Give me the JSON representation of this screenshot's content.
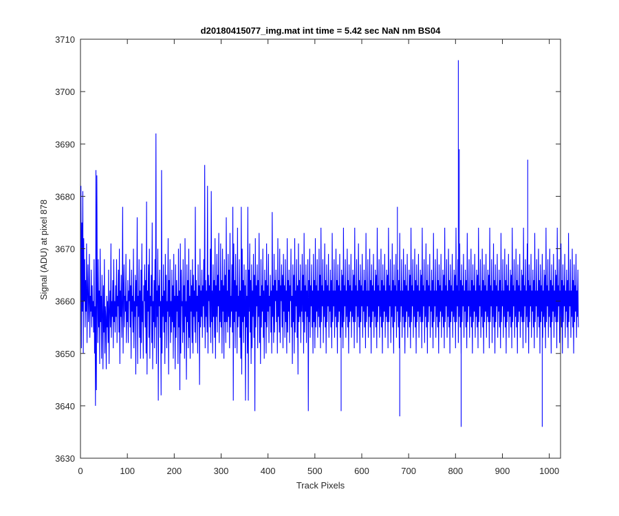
{
  "chart_data": {
    "type": "line",
    "title": "d20180415077_img.mat int time = 5.42 sec  NaN nm BS04",
    "xlabel": "Track Pixels",
    "ylabel": "Signal (ADU) at pixel 878",
    "xlim": [
      0,
      1024
    ],
    "ylim": [
      3630,
      3710
    ],
    "xticks": [
      0,
      100,
      200,
      300,
      400,
      500,
      600,
      700,
      800,
      900,
      1000
    ],
    "yticks": [
      3630,
      3640,
      3650,
      3660,
      3670,
      3680,
      3690,
      3700,
      3710
    ],
    "grid": false,
    "legend": "none",
    "series": [
      {
        "color": "#0000ff",
        "x_start": 1,
        "x_step": 1,
        "values": [
          3682,
          3651,
          3675,
          3658,
          3681,
          3650,
          3672,
          3660,
          3668,
          3655,
          3664,
          3658,
          3671,
          3652,
          3662,
          3667,
          3656,
          3660,
          3669,
          3653,
          3661,
          3658,
          3666,
          3655,
          3663,
          3657,
          3660,
          3654,
          3668,
          3650,
          3659,
          3640,
          3685,
          3643,
          3684,
          3660,
          3652,
          3668,
          3655,
          3662,
          3648,
          3670,
          3656,
          3661,
          3649,
          3665,
          3658,
          3647,
          3663,
          3654,
          3668,
          3650,
          3659,
          3657,
          3647,
          3661,
          3655,
          3660,
          3652,
          3666,
          3648,
          3658,
          3662,
          3655,
          3671,
          3653,
          3660,
          3657,
          3664,
          3651,
          3668,
          3656,
          3660,
          3654,
          3663,
          3657,
          3668,
          3652,
          3661,
          3659,
          3666,
          3654,
          3670,
          3648,
          3662,
          3657,
          3665,
          3653,
          3659,
          3678,
          3650,
          3662,
          3667,
          3655,
          3661,
          3658,
          3669,
          3652,
          3660,
          3656,
          3664,
          3652,
          3662,
          3660,
          3668,
          3655,
          3663,
          3649,
          3666,
          3658,
          3661,
          3654,
          3670,
          3651,
          3660,
          3657,
          3665,
          3646,
          3664,
          3659,
          3676,
          3648,
          3661,
          3657,
          3668,
          3653,
          3662,
          3649,
          3666,
          3652,
          3671,
          3656,
          3660,
          3649,
          3663,
          3660,
          3667,
          3655,
          3664,
          3650,
          3679,
          3646,
          3662,
          3658,
          3667,
          3653,
          3670,
          3649,
          3661,
          3659,
          3665,
          3652,
          3675,
          3647,
          3660,
          3656,
          3664,
          3651,
          3668,
          3655,
          3692,
          3648,
          3662,
          3657,
          3670,
          3641,
          3663,
          3659,
          3666,
          3653,
          3660,
          3642,
          3685,
          3650,
          3661,
          3657,
          3667,
          3654,
          3662,
          3648,
          3669,
          3656,
          3665,
          3651,
          3660,
          3658,
          3672,
          3646,
          3664,
          3657,
          3668,
          3652,
          3660,
          3654,
          3666,
          3656,
          3663,
          3649,
          3669,
          3655,
          3661,
          3647,
          3667,
          3653,
          3664,
          3658,
          3661,
          3648,
          3670,
          3655,
          3662,
          3643,
          3671,
          3650,
          3666,
          3659,
          3660,
          3652,
          3668,
          3654,
          3663,
          3649,
          3672,
          3657,
          3660,
          3645,
          3667,
          3656,
          3664,
          3651,
          3670,
          3653,
          3661,
          3649,
          3666,
          3658,
          3663,
          3652,
          3668,
          3650,
          3665,
          3657,
          3662,
          3654,
          3678,
          3652,
          3664,
          3658,
          3661,
          3650,
          3667,
          3656,
          3663,
          3644,
          3670,
          3655,
          3662,
          3657,
          3666,
          3653,
          3663,
          3659,
          3668,
          3655,
          3686,
          3651,
          3664,
          3657,
          3662,
          3654,
          3682,
          3650,
          3665,
          3660,
          3663,
          3655,
          3670,
          3652,
          3681,
          3656,
          3662,
          3650,
          3667,
          3657,
          3664,
          3653,
          3672,
          3649,
          3663,
          3657,
          3669,
          3654,
          3665,
          3659,
          3673,
          3652,
          3662,
          3656,
          3671,
          3655,
          3664,
          3650,
          3670,
          3658,
          3663,
          3649,
          3668,
          3656,
          3665,
          3652,
          3676,
          3656,
          3662,
          3654,
          3669,
          3657,
          3666,
          3651,
          3673,
          3655,
          3661,
          3658,
          3667,
          3654,
          3678,
          3641,
          3671,
          3656,
          3664,
          3651,
          3669,
          3658,
          3663,
          3650,
          3674,
          3655,
          3661,
          3657,
          3668,
          3653,
          3662,
          3649,
          3678,
          3646,
          3670,
          3656,
          3664,
          3652,
          3667,
          3657,
          3663,
          3641,
          3666,
          3655,
          3661,
          3650,
          3678,
          3641,
          3666,
          3658,
          3671,
          3654,
          3664,
          3648,
          3667,
          3651,
          3662,
          3657,
          3669,
          3653,
          3665,
          3639,
          3672,
          3655,
          3663,
          3659,
          3667,
          3651,
          3664,
          3657,
          3673,
          3652,
          3661,
          3648,
          3668,
          3655,
          3663,
          3658,
          3670,
          3653,
          3662,
          3649,
          3666,
          3656,
          3664,
          3650,
          3671,
          3655,
          3663,
          3658,
          3669,
          3652,
          3661,
          3659,
          3665,
          3654,
          3662,
          3650,
          3677,
          3657,
          3663,
          3652,
          3669,
          3654,
          3664,
          3660,
          3666,
          3656,
          3662,
          3650,
          3672,
          3657,
          3664,
          3654,
          3670,
          3652,
          3663,
          3660,
          3667,
          3655,
          3665,
          3651,
          3669,
          3658,
          3663,
          3653,
          3668,
          3656,
          3662,
          3650,
          3672,
          3654,
          3664,
          3658,
          3666,
          3652,
          3663,
          3660,
          3670,
          3655,
          3661,
          3648,
          3667,
          3656,
          3665,
          3650,
          3672,
          3654,
          3662,
          3659,
          3668,
          3653,
          3663,
          3646,
          3671,
          3656,
          3664,
          3657,
          3667,
          3652,
          3662,
          3658,
          3669,
          3656,
          3665,
          3650,
          3673,
          3654,
          3663,
          3658,
          3667,
          3652,
          3662,
          3657,
          3668,
          3639,
          3664,
          3656,
          3670,
          3653,
          3663,
          3659,
          3667,
          3655,
          3662,
          3650,
          3669,
          3656,
          3664,
          3651,
          3672,
          3655,
          3663,
          3658,
          3668,
          3653,
          3662,
          3657,
          3670,
          3655,
          3665,
          3651,
          3674,
          3656,
          3663,
          3659,
          3668,
          3652,
          3662,
          3657,
          3671,
          3655,
          3664,
          3650,
          3667,
          3656,
          3663,
          3659,
          3669,
          3653,
          3662,
          3658,
          3666,
          3655,
          3664,
          3651,
          3673,
          3656,
          3662,
          3659,
          3668,
          3653,
          3662,
          3657,
          3670,
          3655,
          3664,
          3650,
          3667,
          3656,
          3663,
          3658,
          3669,
          3653,
          3662,
          3657,
          3666,
          3655,
          3665,
          3651,
          3674,
          3656,
          3663,
          3659,
          3668,
          3653,
          3662,
          3657,
          3670,
          3655,
          3664,
          3650,
          3667,
          3656,
          3663,
          3658,
          3669,
          3653,
          3662,
          3657,
          3666,
          3656,
          3665,
          3651,
          3674,
          3656,
          3663,
          3659,
          3668,
          3652,
          3662,
          3657,
          3671,
          3655,
          3664,
          3650,
          3667,
          3656,
          3663,
          3659,
          3669,
          3653,
          3662,
          3658,
          3666,
          3655,
          3664,
          3651,
          3673,
          3656,
          3662,
          3659,
          3668,
          3653,
          3662,
          3657,
          3670,
          3655,
          3664,
          3650,
          3667,
          3656,
          3663,
          3658,
          3669,
          3653,
          3662,
          3657,
          3666,
          3655,
          3665,
          3651,
          3674,
          3656,
          3663,
          3659,
          3668,
          3653,
          3662,
          3657,
          3670,
          3655,
          3664,
          3650,
          3667,
          3656,
          3663,
          3658,
          3669,
          3653,
          3662,
          3657,
          3666,
          3656,
          3665,
          3651,
          3674,
          3656,
          3663,
          3659,
          3668,
          3652,
          3662,
          3657,
          3671,
          3655,
          3664,
          3650,
          3667,
          3656,
          3663,
          3659,
          3669,
          3653,
          3662,
          3658,
          3666,
          3655,
          3664,
          3651,
          3673,
          3656,
          3662,
          3659,
          3668,
          3653,
          3662,
          3657,
          3670,
          3655,
          3664,
          3650,
          3667,
          3656,
          3663,
          3658,
          3669,
          3653,
          3662,
          3657,
          3666,
          3655,
          3665,
          3651,
          3674,
          3656,
          3663,
          3659,
          3668,
          3653,
          3662,
          3657,
          3670,
          3655,
          3664,
          3650,
          3667,
          3656,
          3663,
          3658,
          3669,
          3653,
          3662,
          3657,
          3666,
          3656,
          3665,
          3651,
          3674,
          3656,
          3663,
          3659,
          3668,
          3652,
          3662,
          3657,
          3671,
          3655,
          3664,
          3650,
          3667,
          3656,
          3663,
          3659,
          3669,
          3653,
          3662,
          3658,
          3666,
          3655,
          3664,
          3651,
          3673,
          3656,
          3662,
          3659,
          3668,
          3653,
          3662,
          3657,
          3670,
          3655,
          3664,
          3650,
          3667,
          3656,
          3663,
          3658,
          3669,
          3653,
          3662,
          3657,
          3666,
          3655,
          3665,
          3651,
          3674,
          3656,
          3663,
          3659,
          3668,
          3653,
          3662,
          3657,
          3670,
          3655,
          3664,
          3650,
          3667,
          3656,
          3663,
          3658,
          3669,
          3653,
          3662,
          3657,
          3666,
          3656,
          3665,
          3651,
          3674,
          3656,
          3663,
          3659,
          3668,
          3652,
          3662,
          3657,
          3671,
          3655,
          3664,
          3650,
          3667,
          3656,
          3663,
          3659,
          3669,
          3653,
          3662,
          3658,
          3666,
          3655,
          3664,
          3651,
          3673,
          3656,
          3662,
          3659,
          3668,
          3653,
          3662,
          3657,
          3670,
          3655,
          3664,
          3650,
          3667,
          3656,
          3663,
          3658,
          3669,
          3653,
          3662,
          3657,
          3666,
          3655,
          3665,
          3651,
          3674,
          3656,
          3663,
          3659,
          3668,
          3653,
          3662,
          3657,
          3670,
          3655,
          3664,
          3650,
          3667,
          3656,
          3663,
          3658,
          3669,
          3653,
          3662,
          3657,
          3666,
          3656,
          3665,
          3651,
          3674,
          3656,
          3663,
          3659,
          3668,
          3652,
          3662,
          3657,
          3671,
          3655,
          3664,
          3650,
          3667,
          3656,
          3663,
          3659,
          3669,
          3653,
          3662,
          3658,
          3666,
          3655,
          3664,
          3651,
          3673,
          3656,
          3662,
          3659,
          3668,
          3653,
          3662,
          3657,
          3670,
          3655,
          3664,
          3650,
          3667,
          3656,
          3663,
          3658,
          3669,
          3653,
          3662,
          3657,
          3666,
          3655,
          3665,
          3651,
          3674,
          3656,
          3663,
          3659,
          3668,
          3653,
          3662,
          3657,
          3670,
          3655,
          3664,
          3650,
          3667,
          3656,
          3663,
          3658,
          3669,
          3653,
          3662,
          3657,
          3666,
          3656,
          3665,
          3651,
          3674,
          3656,
          3663,
          3659,
          3668,
          3652,
          3662,
          3657,
          3671,
          3655,
          3664,
          3650,
          3667,
          3656,
          3663,
          3659,
          3669,
          3653,
          3662,
          3658,
          3666,
          3655,
          3664,
          3651,
          3673,
          3656,
          3662,
          3659,
          3668,
          3653,
          3662,
          3657,
          3670,
          3655,
          3664,
          3650,
          3667,
          3656,
          3663,
          3658,
          3669,
          3653,
          3662,
          3657,
          3666,
          3655,
          3665,
          3651,
          3674,
          3656,
          3663,
          3659,
          3668,
          3653,
          3662,
          3657,
          3670,
          3655,
          3664,
          3650,
          3667,
          3656,
          3663,
          3658,
          3669,
          3653,
          3662,
          3657,
          3666,
          3656,
          3665,
          3651,
          3674,
          3656,
          3663,
          3659,
          3668,
          3652,
          3662,
          3657,
          3671,
          3655,
          3664,
          3650,
          3667,
          3656,
          3663,
          3659,
          3669,
          3653,
          3662,
          3658,
          3666,
          3655,
          3664,
          3651,
          3673,
          3656,
          3662,
          3659,
          3668,
          3653,
          3662,
          3657,
          3670,
          3655,
          3664,
          3650,
          3667,
          3656,
          3663,
          3658,
          3669,
          3653,
          3662,
          3657,
          3666,
          3655
        ]
      }
    ],
    "annotations_spikes": [
      {
        "x": 806,
        "y": 3706
      },
      {
        "x": 812,
        "y": 3636
      },
      {
        "x": 985,
        "y": 3636
      },
      {
        "x": 808,
        "y": 3689
      },
      {
        "x": 681,
        "y": 3638
      },
      {
        "x": 676,
        "y": 3678
      },
      {
        "x": 556,
        "y": 3639
      },
      {
        "x": 954,
        "y": 3687
      }
    ]
  }
}
